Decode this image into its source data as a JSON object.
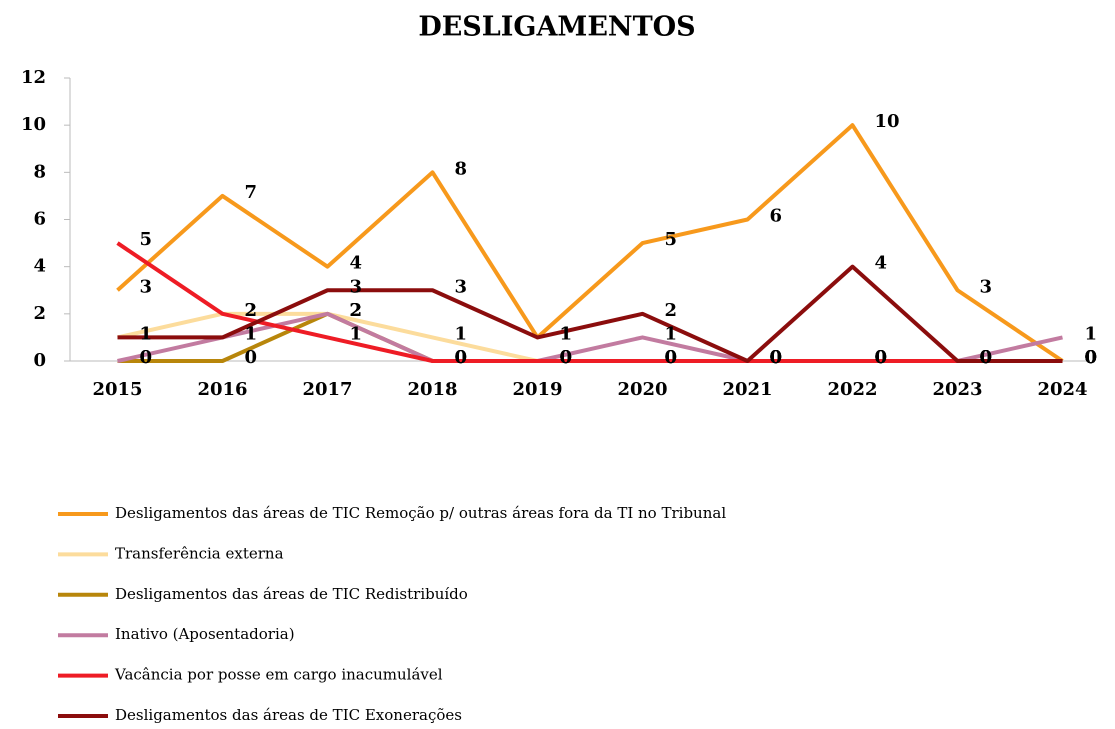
{
  "chart_data": {
    "type": "line",
    "title": "DESLIGAMENTOS",
    "categories": [
      "2015",
      "2016",
      "2017",
      "2018",
      "2019",
      "2020",
      "2021",
      "2022",
      "2023",
      "2024"
    ],
    "series": [
      {
        "name": "Desligamentos das áreas de TIC Remoção p/ outras áreas fora da TI no Tribunal",
        "color": "#f7991c",
        "values": [
          3,
          7,
          4,
          8,
          1,
          5,
          6,
          10,
          3,
          0
        ]
      },
      {
        "name": "Transferência externa",
        "color": "#fcdc9c",
        "values": [
          1,
          2,
          2,
          1,
          0,
          0,
          0,
          0,
          0,
          0
        ]
      },
      {
        "name": "Desligamentos das áreas de TIC Redistribuído",
        "color": "#b8860b",
        "values": [
          0,
          0,
          2,
          0,
          0,
          0,
          0,
          0,
          0,
          0
        ]
      },
      {
        "name": "Inativo (Aposentadoria)",
        "color": "#c27ba0",
        "values": [
          0,
          1,
          2,
          0,
          0,
          1,
          0,
          0,
          0,
          1
        ]
      },
      {
        "name": "Vacância por posse em cargo inacumulável",
        "color": "#ee1c25",
        "values": [
          5,
          2,
          1,
          0,
          0,
          0,
          0,
          0,
          0,
          0
        ]
      },
      {
        "name": "Desligamentos das áreas de TIC Exonerações",
        "color": "#8b0d0d",
        "values": [
          1,
          1,
          3,
          3,
          1,
          2,
          0,
          4,
          0,
          0
        ]
      }
    ],
    "ylim": [
      0,
      12
    ],
    "yticks": [
      0,
      2,
      4,
      6,
      8,
      10,
      12
    ],
    "grid": false
  }
}
